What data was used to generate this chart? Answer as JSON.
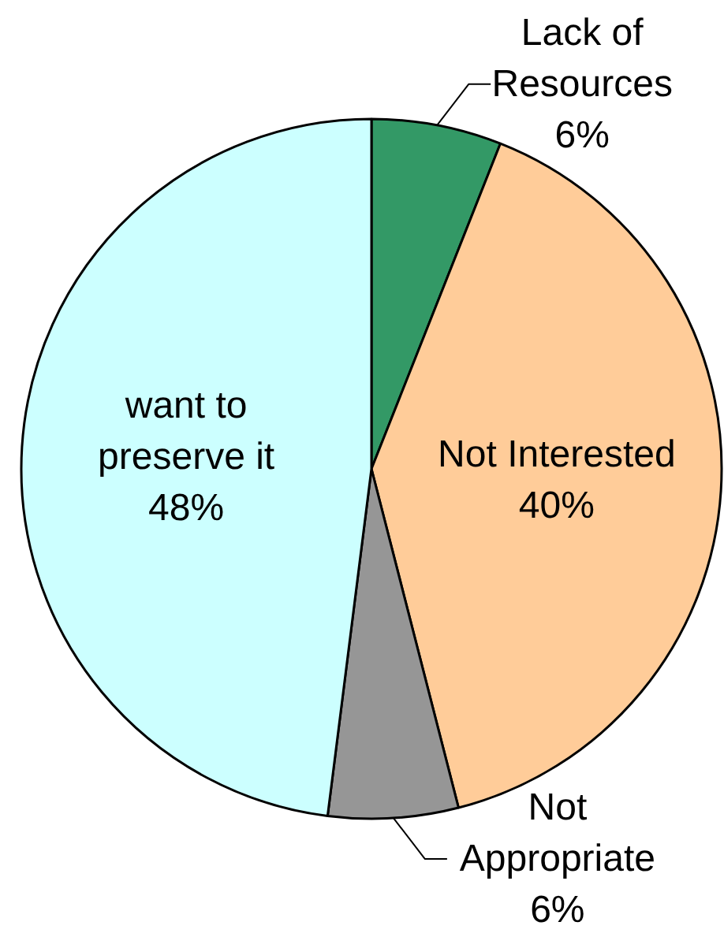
{
  "chart_data": {
    "type": "pie",
    "categories": [
      "Lack of Resources",
      "Not Interested",
      "Not Appropriate",
      "want to preserve it"
    ],
    "values": [
      6,
      40,
      6,
      48
    ],
    "value_labels": [
      "6%",
      "40%",
      "6%",
      "48%"
    ],
    "colors": [
      "#339966",
      "#ffcc99",
      "#969696",
      "#ccffff"
    ]
  }
}
